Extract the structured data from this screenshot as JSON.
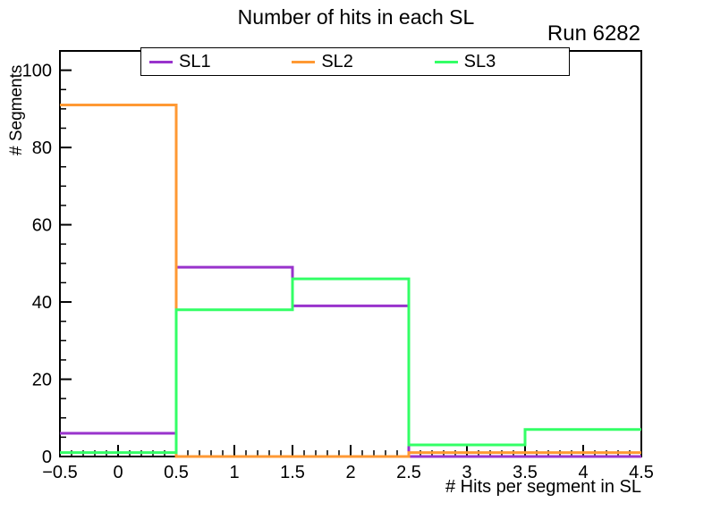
{
  "title": "Number of hits in each SL",
  "corner_label": "Run 6282",
  "axes": {
    "x_title": "# Hits per segment in SL",
    "y_title": "# Segments",
    "x_tick_labels": [
      "−0.5",
      "0",
      "0.5",
      "1",
      "1.5",
      "2",
      "2.5",
      "3",
      "3.5",
      "4",
      "4.5"
    ],
    "y_tick_labels": [
      "0",
      "20",
      "40",
      "60",
      "80",
      "100"
    ]
  },
  "legend": {
    "entries": [
      {
        "label": "SL1",
        "color": "#9933cc"
      },
      {
        "label": "SL2",
        "color": "#ff9933"
      },
      {
        "label": "SL3",
        "color": "#33ff66"
      }
    ]
  },
  "chart_data": {
    "type": "histogram-step",
    "title": "Number of hits in each SL",
    "xlabel": "# Hits per segment in SL",
    "ylabel": "# Segments",
    "bin_edges": [
      -0.5,
      0.5,
      1.5,
      2.5,
      3.5,
      4.5
    ],
    "bin_centers": [
      0,
      1,
      2,
      3,
      4
    ],
    "series": [
      {
        "name": "SL1",
        "color": "#9933cc",
        "values": [
          6,
          49,
          39,
          0,
          0
        ]
      },
      {
        "name": "SL2",
        "color": "#ff9933",
        "values": [
          91,
          0,
          0,
          1,
          1
        ]
      },
      {
        "name": "SL3",
        "color": "#33ff66",
        "values": [
          1,
          38,
          46,
          3,
          7
        ]
      }
    ],
    "xlim": [
      -0.5,
      4.5
    ],
    "ylim": [
      0,
      105
    ],
    "x_major_tick_step": 0.5,
    "x_minor_tick_step": 0.1,
    "y_major_tick_step": 20,
    "y_minor_tick_step": 5,
    "grid": false,
    "legend_position": "top-inside",
    "frame_color": "#000000",
    "background_color": "#ffffff"
  }
}
